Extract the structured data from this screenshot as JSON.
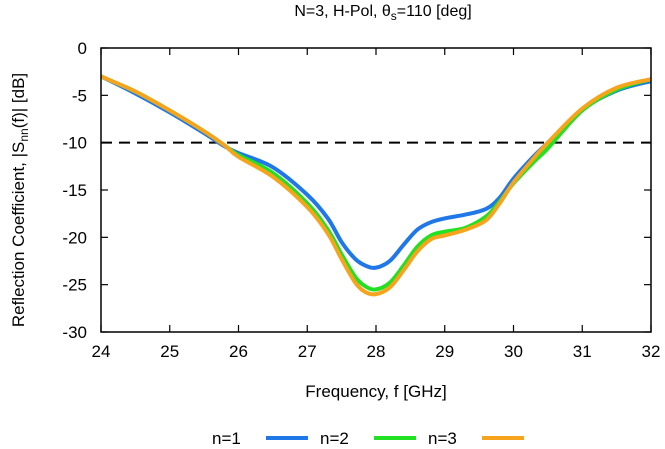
{
  "chart_data": {
    "type": "line",
    "title_parts": {
      "prefix": "N=3, H-Pol, θ",
      "sub": "s",
      "suffix": "=110 [deg]"
    },
    "xlabel": "Frequency, f [GHz]",
    "ylabel_parts": {
      "prefix": "Reflection Coefficient, |S",
      "sub": "nn",
      "suffix": "(f)| [dB]"
    },
    "xlim": [
      24,
      32
    ],
    "ylim": [
      -30,
      0
    ],
    "xticks": [
      "24",
      "25",
      "26",
      "27",
      "28",
      "29",
      "30",
      "31",
      "32"
    ],
    "yticks": [
      "0",
      "-5",
      "-10",
      "-15",
      "-20",
      "-25",
      "-30"
    ],
    "grid": false,
    "legend_position": "bottom",
    "threshold": {
      "y": -10,
      "style": "dashed",
      "color": "#000000"
    },
    "series": [
      {
        "name": "n=1",
        "color": "#1f77e8",
        "x": [
          24,
          24.5,
          25,
          25.5,
          25.8,
          26,
          26.5,
          27,
          27.3,
          27.5,
          27.7,
          27.85,
          28,
          28.2,
          28.4,
          28.6,
          28.8,
          29,
          29.3,
          29.6,
          29.8,
          30,
          30.3,
          30.5,
          31,
          31.5,
          32
        ],
        "y": [
          -3,
          -4.8,
          -6.8,
          -9,
          -10.4,
          -11.1,
          -12.6,
          -15.5,
          -18,
          -20.5,
          -22.3,
          -23,
          -23.2,
          -22.5,
          -20.8,
          -19.2,
          -18.4,
          -18,
          -17.6,
          -17,
          -15.8,
          -13.8,
          -11.4,
          -10,
          -6.5,
          -4.5,
          -3.5
        ]
      },
      {
        "name": "n=2",
        "color": "#22e022",
        "x": [
          24,
          24.5,
          25,
          25.5,
          25.8,
          26,
          26.5,
          27,
          27.3,
          27.5,
          27.7,
          27.85,
          28,
          28.2,
          28.4,
          28.6,
          28.8,
          29,
          29.3,
          29.6,
          29.8,
          30,
          30.3,
          30.5,
          31,
          31.5,
          32
        ],
        "y": [
          -3,
          -4.6,
          -6.6,
          -8.8,
          -10.3,
          -11.3,
          -13.2,
          -16.4,
          -19.2,
          -21.8,
          -24.2,
          -25.2,
          -25.5,
          -24.8,
          -23,
          -21,
          -19.8,
          -19.4,
          -19,
          -17.8,
          -16.2,
          -14.3,
          -12,
          -10.6,
          -6.6,
          -4.4,
          -3.3
        ]
      },
      {
        "name": "n=3",
        "color": "#f5a41c",
        "x": [
          24,
          24.5,
          25,
          25.5,
          25.8,
          26,
          26.5,
          27,
          27.3,
          27.5,
          27.7,
          27.85,
          28,
          28.2,
          28.4,
          28.6,
          28.8,
          29,
          29.3,
          29.6,
          29.8,
          30,
          30.3,
          30.5,
          31,
          31.5,
          32
        ],
        "y": [
          -3,
          -4.6,
          -6.6,
          -8.8,
          -10.3,
          -11.5,
          -13.6,
          -16.8,
          -19.6,
          -22.3,
          -24.8,
          -25.8,
          -26,
          -25.3,
          -23.5,
          -21.5,
          -20.2,
          -19.8,
          -19.2,
          -18.2,
          -16.4,
          -14.2,
          -11.6,
          -10,
          -6.4,
          -4.2,
          -3.3
        ]
      }
    ]
  }
}
